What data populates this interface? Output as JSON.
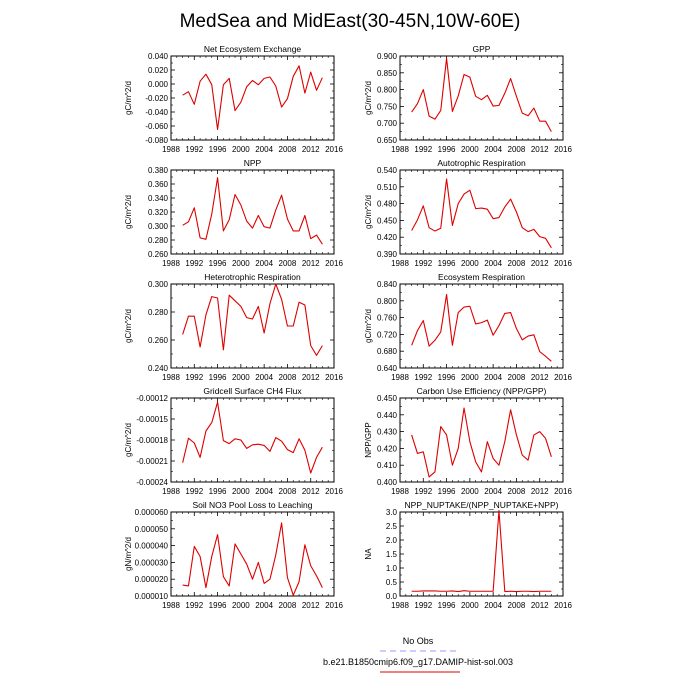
{
  "title": "MedSea and MidEast(30-45N,10W-60E)",
  "series_color": "#dd0000",
  "legend": {
    "entries": [
      {
        "label": "No Obs",
        "color": "#9999ff",
        "style": "dashed"
      },
      {
        "label": "b.e21.B1850cmip6.f09_g17.DAMIP-hist-sol.003",
        "color": "#dd0000",
        "style": "solid"
      }
    ]
  },
  "chart_data": [
    {
      "type": "line",
      "title": "Net Ecosystem Exchange",
      "ylabel": "gC/m^2/d",
      "xlim": [
        1988,
        2016
      ],
      "xticks": [
        1988,
        1992,
        1996,
        2000,
        2004,
        2008,
        2012,
        2016
      ],
      "ylim": [
        -0.08,
        0.04
      ],
      "yticks": [
        "0.040",
        "0.020",
        "0.000",
        "-0.020",
        "-0.040",
        "-0.060",
        "-0.080"
      ],
      "x": [
        1990,
        1991,
        1992,
        1993,
        1994,
        1995,
        1996,
        1997,
        1998,
        1999,
        2000,
        2001,
        2002,
        2003,
        2004,
        2005,
        2006,
        2007,
        2008,
        2009,
        2010,
        2011,
        2012,
        2013,
        2014
      ],
      "y": [
        -0.016,
        -0.011,
        -0.029,
        0.004,
        0.014,
        -0.001,
        -0.065,
        -0.001,
        0.008,
        -0.038,
        -0.026,
        -0.004,
        0.005,
        -0.001,
        0.008,
        0.01,
        -0.003,
        -0.033,
        -0.021,
        0.011,
        0.026,
        -0.013,
        0.017,
        -0.009,
        0.009
      ]
    },
    {
      "type": "line",
      "title": "GPP",
      "ylabel": "gC/m^2/d",
      "xlim": [
        1988,
        2016
      ],
      "xticks": [
        1988,
        1992,
        1996,
        2000,
        2004,
        2008,
        2012,
        2016
      ],
      "ylim": [
        0.65,
        0.9
      ],
      "yticks": [
        "0.900",
        "0.850",
        "0.800",
        "0.750",
        "0.700",
        "0.650"
      ],
      "x": [
        1990,
        1991,
        1992,
        1993,
        1994,
        1995,
        1996,
        1997,
        1998,
        1999,
        2000,
        2001,
        2002,
        2003,
        2004,
        2005,
        2006,
        2007,
        2008,
        2009,
        2010,
        2011,
        2012,
        2013,
        2014
      ],
      "y": [
        0.733,
        0.758,
        0.8,
        0.721,
        0.712,
        0.738,
        0.893,
        0.735,
        0.781,
        0.845,
        0.837,
        0.78,
        0.77,
        0.783,
        0.751,
        0.753,
        0.789,
        0.833,
        0.78,
        0.73,
        0.722,
        0.745,
        0.706,
        0.706,
        0.675
      ]
    },
    {
      "type": "line",
      "title": "NPP",
      "ylabel": "gC/m^2/d",
      "xlim": [
        1988,
        2016
      ],
      "xticks": [
        1988,
        1992,
        1996,
        2000,
        2004,
        2008,
        2012,
        2016
      ],
      "ylim": [
        0.26,
        0.38
      ],
      "yticks": [
        "0.380",
        "0.360",
        "0.340",
        "0.320",
        "0.300",
        "0.280",
        "0.260"
      ],
      "x": [
        1990,
        1991,
        1992,
        1993,
        1994,
        1995,
        1996,
        1997,
        1998,
        1999,
        2000,
        2001,
        2002,
        2003,
        2004,
        2005,
        2006,
        2007,
        2008,
        2009,
        2010,
        2011,
        2012,
        2013,
        2014
      ],
      "y": [
        0.301,
        0.306,
        0.326,
        0.283,
        0.281,
        0.317,
        0.369,
        0.293,
        0.309,
        0.345,
        0.33,
        0.307,
        0.297,
        0.315,
        0.299,
        0.297,
        0.323,
        0.344,
        0.31,
        0.293,
        0.293,
        0.315,
        0.282,
        0.287,
        0.274
      ]
    },
    {
      "type": "line",
      "title": "Autotrophic Respiration",
      "ylabel": "gC/m^2/d",
      "xlim": [
        1988,
        2016
      ],
      "xticks": [
        1988,
        1992,
        1996,
        2000,
        2004,
        2008,
        2012,
        2016
      ],
      "ylim": [
        0.39,
        0.54
      ],
      "yticks": [
        "0.540",
        "0.510",
        "0.480",
        "0.450",
        "0.420",
        "0.390"
      ],
      "x": [
        1990,
        1991,
        1992,
        1993,
        1994,
        1995,
        1996,
        1997,
        1998,
        1999,
        2000,
        2001,
        2002,
        2003,
        2004,
        2005,
        2006,
        2007,
        2008,
        2009,
        2010,
        2011,
        2012,
        2013,
        2014
      ],
      "y": [
        0.432,
        0.451,
        0.476,
        0.437,
        0.431,
        0.436,
        0.524,
        0.441,
        0.48,
        0.497,
        0.504,
        0.471,
        0.472,
        0.47,
        0.453,
        0.455,
        0.474,
        0.488,
        0.465,
        0.437,
        0.43,
        0.434,
        0.421,
        0.418,
        0.401
      ]
    },
    {
      "type": "line",
      "title": "Heterotrophic Respiration",
      "ylabel": "gC/m^2/d",
      "xlim": [
        1988,
        2016
      ],
      "xticks": [
        1988,
        1992,
        1996,
        2000,
        2004,
        2008,
        2012,
        2016
      ],
      "ylim": [
        0.24,
        0.3
      ],
      "yticks": [
        "0.300",
        "0.280",
        "0.260",
        "0.240"
      ],
      "x": [
        1990,
        1991,
        1992,
        1993,
        1994,
        1995,
        1996,
        1997,
        1998,
        1999,
        2000,
        2001,
        2002,
        2003,
        2004,
        2005,
        2006,
        2007,
        2008,
        2009,
        2010,
        2011,
        2012,
        2013,
        2014
      ],
      "y": [
        0.264,
        0.277,
        0.277,
        0.255,
        0.278,
        0.291,
        0.29,
        0.253,
        0.292,
        0.288,
        0.284,
        0.276,
        0.275,
        0.284,
        0.265,
        0.286,
        0.3,
        0.289,
        0.27,
        0.27,
        0.287,
        0.285,
        0.256,
        0.249,
        0.256
      ]
    },
    {
      "type": "line",
      "title": "Ecosystem Respiration",
      "ylabel": "gC/m^2/d",
      "xlim": [
        1988,
        2016
      ],
      "xticks": [
        1988,
        1992,
        1996,
        2000,
        2004,
        2008,
        2012,
        2016
      ],
      "ylim": [
        0.64,
        0.84
      ],
      "yticks": [
        "0.840",
        "0.800",
        "0.760",
        "0.720",
        "0.680",
        "0.640"
      ],
      "x": [
        1990,
        1991,
        1992,
        1993,
        1994,
        1995,
        1996,
        1997,
        1998,
        1999,
        2000,
        2001,
        2002,
        2003,
        2004,
        2005,
        2006,
        2007,
        2008,
        2009,
        2010,
        2011,
        2012,
        2013,
        2014
      ],
      "y": [
        0.694,
        0.729,
        0.753,
        0.692,
        0.706,
        0.726,
        0.815,
        0.694,
        0.772,
        0.785,
        0.787,
        0.745,
        0.748,
        0.754,
        0.718,
        0.741,
        0.77,
        0.772,
        0.734,
        0.707,
        0.716,
        0.719,
        0.679,
        0.668,
        0.656
      ]
    },
    {
      "type": "line",
      "title": "Gridcell Surface CH4 Flux",
      "ylabel": "gC/m^2/d",
      "xlim": [
        1988,
        2016
      ],
      "xticks": [
        1988,
        1992,
        1996,
        2000,
        2004,
        2008,
        2012,
        2016
      ],
      "ylim": [
        -0.00024,
        -0.0001
      ],
      "yticks": [
        "-0.00012",
        "-0.00015",
        "-0.00018",
        "-0.00021",
        "-0.00024"
      ],
      "x": [
        1990,
        1991,
        1992,
        1993,
        1994,
        1995,
        1996,
        1997,
        1998,
        1999,
        2000,
        2001,
        2002,
        2003,
        2004,
        2005,
        2006,
        2007,
        2008,
        2009,
        2010,
        2011,
        2012,
        2013,
        2014
      ],
      "y": [
        -0.000208,
        -0.000167,
        -0.000175,
        -0.000199,
        -0.000155,
        -0.000141,
        -0.000107,
        -0.000171,
        -0.000176,
        -0.000168,
        -0.00017,
        -0.000184,
        -0.000178,
        -0.000177,
        -0.000179,
        -0.000189,
        -0.000166,
        -0.000172,
        -0.000186,
        -0.000191,
        -0.000168,
        -0.000187,
        -0.000225,
        -0.000199,
        -0.000182
      ]
    },
    {
      "type": "line",
      "title": "Carbon Use Efficiency (NPP/GPP)",
      "ylabel": "NPP/GPP",
      "xlim": [
        1988,
        2016
      ],
      "xticks": [
        1988,
        1992,
        1996,
        2000,
        2004,
        2008,
        2012,
        2016
      ],
      "ylim": [
        0.4,
        0.45
      ],
      "yticks": [
        "0.450",
        "0.440",
        "0.430",
        "0.420",
        "0.410",
        "0.400"
      ],
      "x": [
        1990,
        1991,
        1992,
        1993,
        1994,
        1995,
        1996,
        1997,
        1998,
        1999,
        2000,
        2001,
        2002,
        2003,
        2004,
        2005,
        2006,
        2007,
        2008,
        2009,
        2010,
        2011,
        2012,
        2013,
        2014
      ],
      "y": [
        0.428,
        0.417,
        0.418,
        0.403,
        0.406,
        0.433,
        0.428,
        0.41,
        0.42,
        0.444,
        0.424,
        0.412,
        0.406,
        0.424,
        0.414,
        0.41,
        0.424,
        0.443,
        0.428,
        0.416,
        0.413,
        0.428,
        0.43,
        0.426,
        0.415
      ]
    },
    {
      "type": "line",
      "title": "Soil NO3 Pool Loss to Leaching",
      "ylabel": "gN/m^2/d",
      "xlim": [
        1988,
        2016
      ],
      "xticks": [
        1988,
        1992,
        1996,
        2000,
        2004,
        2008,
        2012,
        2016
      ],
      "ylim": [
        1e-05,
        6e-05
      ],
      "yticks": [
        "0.000060",
        "0.000050",
        "0.000040",
        "0.000030",
        "0.000020",
        "0.000010"
      ],
      "x": [
        1990,
        1991,
        1992,
        1993,
        1994,
        1995,
        1996,
        1997,
        1998,
        1999,
        2000,
        2001,
        2002,
        2003,
        2004,
        2005,
        2006,
        2007,
        2008,
        2009,
        2010,
        2011,
        2012,
        2013,
        2014
      ],
      "y": [
        1.65e-05,
        1.6e-05,
        3.95e-05,
        3.35e-05,
        1.5e-05,
        3.35e-05,
        4.65e-05,
        2.15e-05,
        1.6e-05,
        4.1e-05,
        3.5e-05,
        2.9e-05,
        2e-05,
        3e-05,
        1.75e-05,
        2e-05,
        3.45e-05,
        5.35e-05,
        2.1e-05,
        1.05e-05,
        1.85e-05,
        4.05e-05,
        2.8e-05,
        2.2e-05,
        1.5e-05
      ]
    },
    {
      "type": "line",
      "title": "NPP_NUPTAKE/(NPP_NUPTAKE+NPP)",
      "ylabel": "NA",
      "xlim": [
        1988,
        2016
      ],
      "xticks": [
        1988,
        1992,
        1996,
        2000,
        2004,
        2008,
        2012,
        2016
      ],
      "ylim": [
        0,
        3
      ],
      "yticks": [
        "3.0",
        "2.5",
        "2.0",
        "1.5",
        "1.0",
        "0.5",
        "0.0"
      ],
      "x": [
        1990,
        1991,
        1992,
        1993,
        1994,
        1995,
        1996,
        1997,
        1998,
        1999,
        2000,
        2001,
        2002,
        2003,
        2004,
        2005,
        2006,
        2007,
        2008,
        2009,
        2010,
        2011,
        2012,
        2013,
        2014
      ],
      "y": [
        0.17,
        0.17,
        0.18,
        0.18,
        0.18,
        0.17,
        0.17,
        0.18,
        0.16,
        0.19,
        0.17,
        0.17,
        0.17,
        0.17,
        0.17,
        3.05,
        0.16,
        0.17,
        0.16,
        0.17,
        0.17,
        0.16,
        0.17,
        0.17,
        0.17
      ]
    }
  ]
}
